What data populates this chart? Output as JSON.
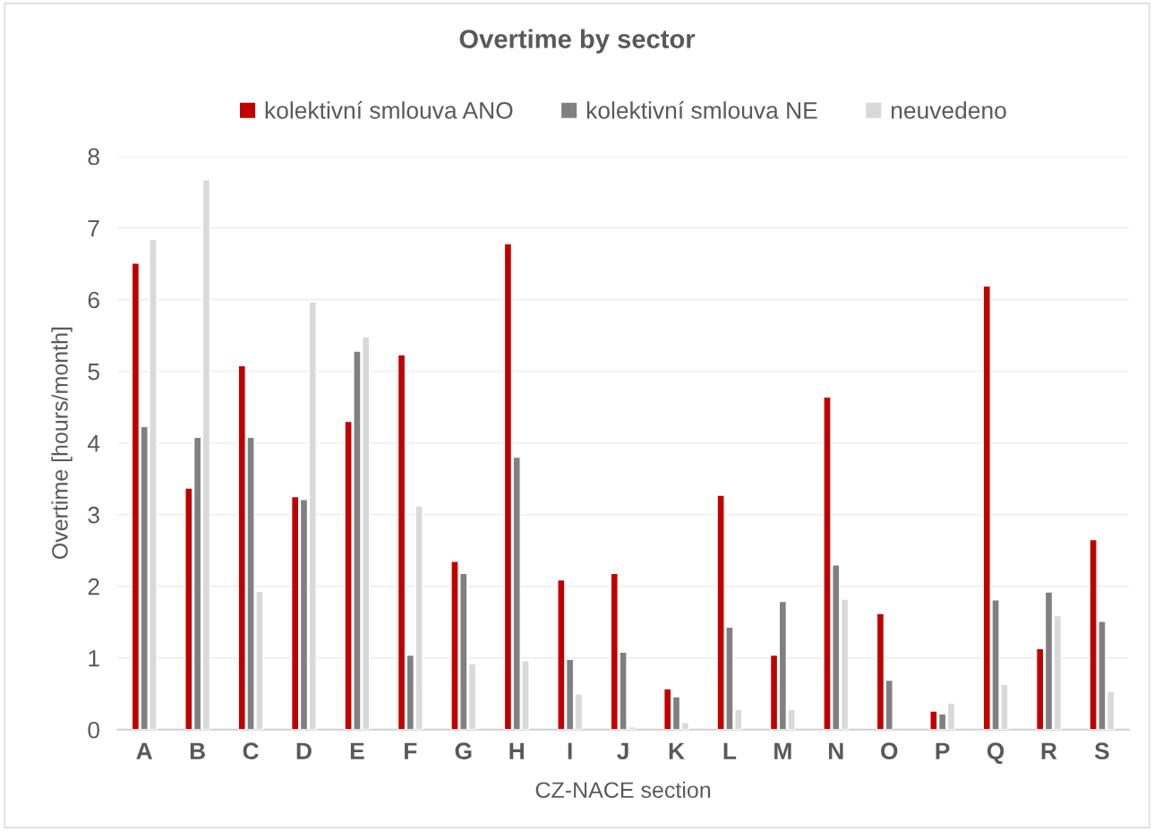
{
  "chart_data": {
    "type": "bar",
    "title": "Overtime by sector",
    "xlabel": "CZ-NACE section",
    "ylabel": "Overtime [hours/month]",
    "categories": [
      "A",
      "B",
      "C",
      "D",
      "E",
      "F",
      "G",
      "H",
      "I",
      "J",
      "K",
      "L",
      "M",
      "N",
      "O",
      "P",
      "Q",
      "R",
      "S"
    ],
    "series": [
      {
        "name": "kolektivní smlouva ANO",
        "color": "#c00000",
        "values": [
          6.51,
          3.37,
          5.08,
          3.25,
          4.3,
          5.23,
          2.35,
          6.78,
          2.09,
          2.18,
          0.57,
          3.27,
          1.04,
          4.64,
          1.62,
          0.26,
          6.19,
          1.13,
          2.65
        ]
      },
      {
        "name": "kolektivní smlouva NE",
        "color": "#808080",
        "values": [
          4.23,
          4.08,
          4.08,
          3.21,
          5.28,
          1.04,
          2.18,
          3.8,
          0.98,
          1.08,
          0.46,
          1.43,
          1.79,
          2.3,
          0.69,
          0.22,
          1.81,
          1.92,
          1.51
        ]
      },
      {
        "name": "neuvedeno",
        "color": "#d9d9d9",
        "values": [
          6.84,
          7.67,
          1.93,
          5.97,
          5.48,
          3.12,
          0.92,
          0.96,
          0.5,
          0.04,
          0.1,
          0.28,
          0.28,
          1.82,
          null,
          0.37,
          0.63,
          1.59,
          0.53
        ]
      }
    ],
    "ylim": [
      0,
      8
    ],
    "yticks": [
      0,
      1,
      2,
      3,
      4,
      5,
      6,
      7,
      8
    ],
    "grid": "y",
    "legend": "top"
  }
}
